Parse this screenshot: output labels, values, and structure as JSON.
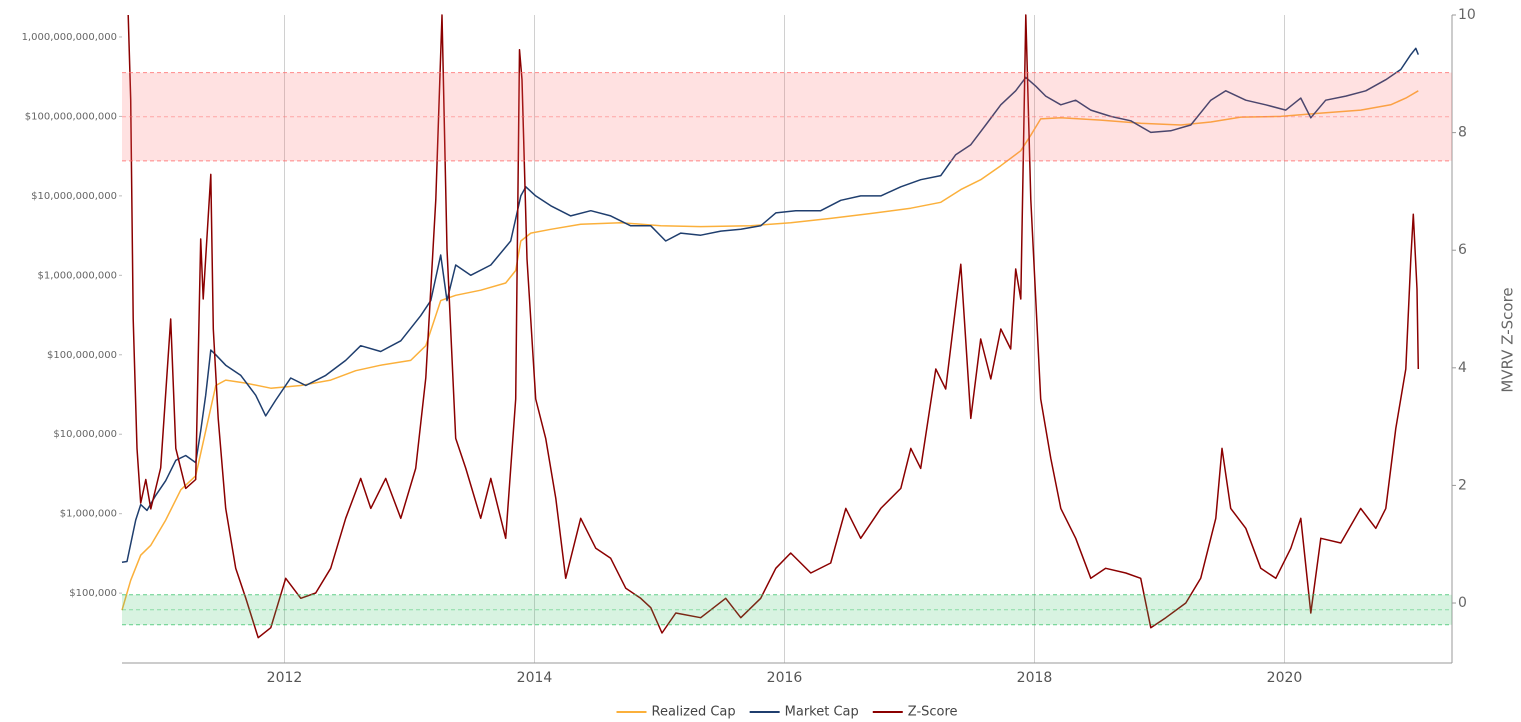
{
  "chart_data": {
    "type": "line",
    "y2title": "MVRV Z-Score",
    "xlim": [
      2010.7,
      2021.34
    ],
    "xticks": [
      2012,
      2014,
      2016,
      2018,
      2020
    ],
    "xgrid": true,
    "yscale": "log",
    "ylim": [
      13200,
      1890000000000.0
    ],
    "yticks": [
      {
        "value": 100000,
        "label": "$100,000"
      },
      {
        "value": 1000000,
        "label": "$1,000,000"
      },
      {
        "value": 10000000,
        "label": "$10,000,000"
      },
      {
        "value": 100000000,
        "label": "$100,000,000"
      },
      {
        "value": 1000000000,
        "label": "$1,000,000,000"
      },
      {
        "value": 10000000000,
        "label": "$10,000,000,000"
      },
      {
        "value": 100000000000,
        "label": "$100,000,000,000"
      },
      {
        "value": 1000000000000,
        "label": "1,000,000,000,000"
      }
    ],
    "y2lim": [
      -1.02,
      10
    ],
    "y2ticks": [
      0,
      2,
      4,
      6,
      8,
      10
    ],
    "bands": [
      {
        "range": [
          7.52,
          9.02
        ],
        "color": "#ff6b6b",
        "axis": "y2"
      },
      {
        "range": [
          -0.37,
          0.14
        ],
        "color": "#3cc36b",
        "axis": "y2"
      }
    ],
    "legend": "bottom",
    "series": [
      {
        "name": "Realized Cap",
        "color": "#fbb03b",
        "x": [
          2010.7,
          2010.77,
          2010.85,
          2010.93,
          2011.05,
          2011.17,
          2011.29,
          2011.37,
          2011.45,
          2011.53,
          2011.69,
          2011.89,
          2012.13,
          2012.37,
          2012.57,
          2012.77,
          2013.01,
          2013.13,
          2013.25,
          2013.37,
          2013.57,
          2013.77,
          2013.85,
          2013.89,
          2013.97,
          2014.13,
          2014.37,
          2014.69,
          2015.01,
          2015.33,
          2015.73,
          2016.05,
          2016.37,
          2016.69,
          2017.01,
          2017.25,
          2017.41,
          2017.57,
          2017.73,
          2017.89,
          2017.97,
          2018.05,
          2018.21,
          2018.53,
          2018.85,
          2019.17,
          2019.41,
          2019.65,
          2019.97,
          2020.29,
          2020.61,
          2020.85,
          2020.97,
          2021.07
        ],
        "values": [
          61000.0,
          145000.0,
          300000.0,
          400000.0,
          830000.0,
          2000000.0,
          3000000.0,
          11000000.0,
          41000000.0,
          48000000.0,
          44000000.0,
          38000000.0,
          41000000.0,
          48000000.0,
          63000000.0,
          74000000.0,
          85000000.0,
          130000000.0,
          480000000.0,
          560000000.0,
          650000000.0,
          800000000.0,
          1150000000.0,
          2700000000.0,
          3400000000.0,
          3800000000.0,
          4400000000.0,
          4600000000.0,
          4200000000.0,
          4100000000.0,
          4200000000.0,
          4600000000.0,
          5200000000.0,
          6000000000.0,
          7000000000.0,
          8300000000.0,
          12000000000.0,
          16000000000.0,
          24000000000.0,
          37000000000.0,
          58000000000.0,
          93000000000.0,
          96000000000.0,
          90000000000.0,
          82000000000.0,
          78000000000.0,
          85000000000.0,
          98000000000.0,
          100000000000.0,
          110000000000.0,
          120000000000.0,
          140000000000.0,
          170000000000.0,
          210000000000.0
        ]
      },
      {
        "name": "Market Cap",
        "color": "#1f3e6e",
        "x": [
          2010.7,
          2010.74,
          2010.81,
          2010.85,
          2010.9,
          2010.97,
          2011.05,
          2011.13,
          2011.21,
          2011.29,
          2011.33,
          2011.37,
          2011.41,
          2011.45,
          2011.53,
          2011.65,
          2011.77,
          2011.85,
          2011.93,
          2012.05,
          2012.17,
          2012.33,
          2012.49,
          2012.61,
          2012.77,
          2012.93,
          2013.09,
          2013.17,
          2013.25,
          2013.3,
          2013.37,
          2013.49,
          2013.65,
          2013.81,
          2013.89,
          2013.93,
          2014.01,
          2014.13,
          2014.29,
          2014.45,
          2014.61,
          2014.77,
          2014.93,
          2015.05,
          2015.17,
          2015.33,
          2015.49,
          2015.65,
          2015.81,
          2015.93,
          2016.09,
          2016.29,
          2016.45,
          2016.61,
          2016.77,
          2016.93,
          2017.09,
          2017.25,
          2017.37,
          2017.49,
          2017.61,
          2017.73,
          2017.85,
          2017.93,
          2018.01,
          2018.09,
          2018.21,
          2018.33,
          2018.45,
          2018.61,
          2018.77,
          2018.93,
          2019.09,
          2019.25,
          2019.41,
          2019.53,
          2019.69,
          2019.85,
          2020.01,
          2020.13,
          2020.21,
          2020.33,
          2020.49,
          2020.65,
          2020.81,
          2020.93,
          2021.01,
          2021.05,
          2021.07
        ],
        "values": [
          245000.0,
          250000.0,
          830000.0,
          1300000.0,
          1100000.0,
          1700000.0,
          2600000.0,
          4700000.0,
          5400000.0,
          4400000.0,
          11000000.0,
          31000000.0,
          115000000.0,
          100000000.0,
          74000000.0,
          55000000.0,
          31000000.0,
          17000000.0,
          27000000.0,
          51000000.0,
          41000000.0,
          55000000.0,
          85000000.0,
          130000000.0,
          110000000.0,
          150000000.0,
          310000000.0,
          480000000.0,
          1800000000.0,
          480000000.0,
          1350000000.0,
          1000000000.0,
          1350000000.0,
          2700000000.0,
          10000000000.0,
          13000000000.0,
          10000000000.0,
          7500000000.0,
          5600000000.0,
          6500000000.0,
          5600000000.0,
          4200000000.0,
          4200000000.0,
          2700000000.0,
          3400000000.0,
          3200000000.0,
          3600000000.0,
          3800000000.0,
          4200000000.0,
          6100000000.0,
          6500000000.0,
          6500000000.0,
          8800000000.0,
          10000000000.0,
          10000000000.0,
          13000000000.0,
          16000000000.0,
          18000000000.0,
          33000000000.0,
          44000000000.0,
          78000000000.0,
          140000000000.0,
          210000000000.0,
          310000000000.0,
          240000000000.0,
          180000000000.0,
          140000000000.0,
          160000000000.0,
          120000000000.0,
          100000000000.0,
          88000000000.0,
          63000000000.0,
          66000000000.0,
          78000000000.0,
          160000000000.0,
          210000000000.0,
          160000000000.0,
          140000000000.0,
          120000000000.0,
          170000000000.0,
          96000000000.0,
          160000000000.0,
          180000000000.0,
          210000000000.0,
          290000000000.0,
          390000000000.0,
          600000000000.0,
          720000000000.0,
          600000000000.0
        ]
      },
      {
        "name": "Z-Score",
        "color": "#8b0000",
        "axis": "y2",
        "x": [
          2010.75,
          2010.77,
          2010.79,
          2010.82,
          2010.85,
          2010.89,
          2010.93,
          2011.01,
          2011.09,
          2011.13,
          2011.21,
          2011.29,
          2011.33,
          2011.35,
          2011.41,
          2011.43,
          2011.47,
          2011.53,
          2011.61,
          2011.69,
          2011.79,
          2011.89,
          2012.01,
          2012.13,
          2012.25,
          2012.37,
          2012.49,
          2012.61,
          2012.69,
          2012.81,
          2012.93,
          2013.05,
          2013.13,
          2013.21,
          2013.26,
          2013.3,
          2013.37,
          2013.45,
          2013.57,
          2013.65,
          2013.77,
          2013.85,
          2013.88,
          2013.9,
          2013.94,
          2014.01,
          2014.09,
          2014.17,
          2014.25,
          2014.37,
          2014.49,
          2014.61,
          2014.73,
          2014.85,
          2014.93,
          2015.02,
          2015.13,
          2015.33,
          2015.53,
          2015.65,
          2015.81,
          2015.93,
          2016.05,
          2016.21,
          2016.37,
          2016.49,
          2016.61,
          2016.77,
          2016.93,
          2017.01,
          2017.09,
          2017.21,
          2017.29,
          2017.41,
          2017.49,
          2017.57,
          2017.65,
          2017.73,
          2017.81,
          2017.85,
          2017.89,
          2017.93,
          2017.97,
          2018.05,
          2018.13,
          2018.21,
          2018.33,
          2018.45,
          2018.57,
          2018.73,
          2018.85,
          2018.93,
          2019.05,
          2019.21,
          2019.33,
          2019.45,
          2019.5,
          2019.57,
          2019.69,
          2019.81,
          2019.93,
          2020.05,
          2020.13,
          2020.21,
          2020.29,
          2020.45,
          2020.61,
          2020.73,
          2020.81,
          2020.89,
          2020.97,
          2021.01,
          2021.03,
          2021.06,
          2021.07
        ],
        "values": [
          10,
          8.56,
          4.83,
          2.63,
          1.7,
          2.1,
          1.6,
          2.3,
          4.83,
          2.63,
          1.95,
          2.1,
          6.19,
          5.17,
          7.29,
          4.66,
          3.14,
          1.61,
          0.59,
          0.08,
          -0.59,
          -0.42,
          0.42,
          0.08,
          0.17,
          0.59,
          1.44,
          2.12,
          1.61,
          2.12,
          1.44,
          2.29,
          3.83,
          6.86,
          10,
          6.02,
          2.8,
          2.29,
          1.44,
          2.12,
          1.1,
          3.47,
          9.41,
          8.9,
          5.85,
          3.47,
          2.8,
          1.78,
          0.42,
          1.44,
          0.93,
          0.76,
          0.25,
          0.08,
          -0.08,
          -0.51,
          -0.17,
          -0.25,
          0.08,
          -0.25,
          0.08,
          0.59,
          0.85,
          0.51,
          0.68,
          1.61,
          1.1,
          1.61,
          1.95,
          2.63,
          2.29,
          3.98,
          3.64,
          5.76,
          3.14,
          4.49,
          3.81,
          4.66,
          4.32,
          5.68,
          5.17,
          10,
          6.86,
          3.47,
          2.46,
          1.61,
          1.1,
          0.42,
          0.59,
          0.51,
          0.42,
          -0.42,
          -0.25,
          0,
          0.42,
          1.44,
          2.63,
          1.61,
          1.27,
          0.59,
          0.42,
          0.93,
          1.44,
          -0.17,
          1.1,
          1.02,
          1.61,
          1.27,
          1.61,
          2.97,
          3.98,
          5.85,
          6.61,
          5.34,
          3.98
        ]
      }
    ]
  }
}
